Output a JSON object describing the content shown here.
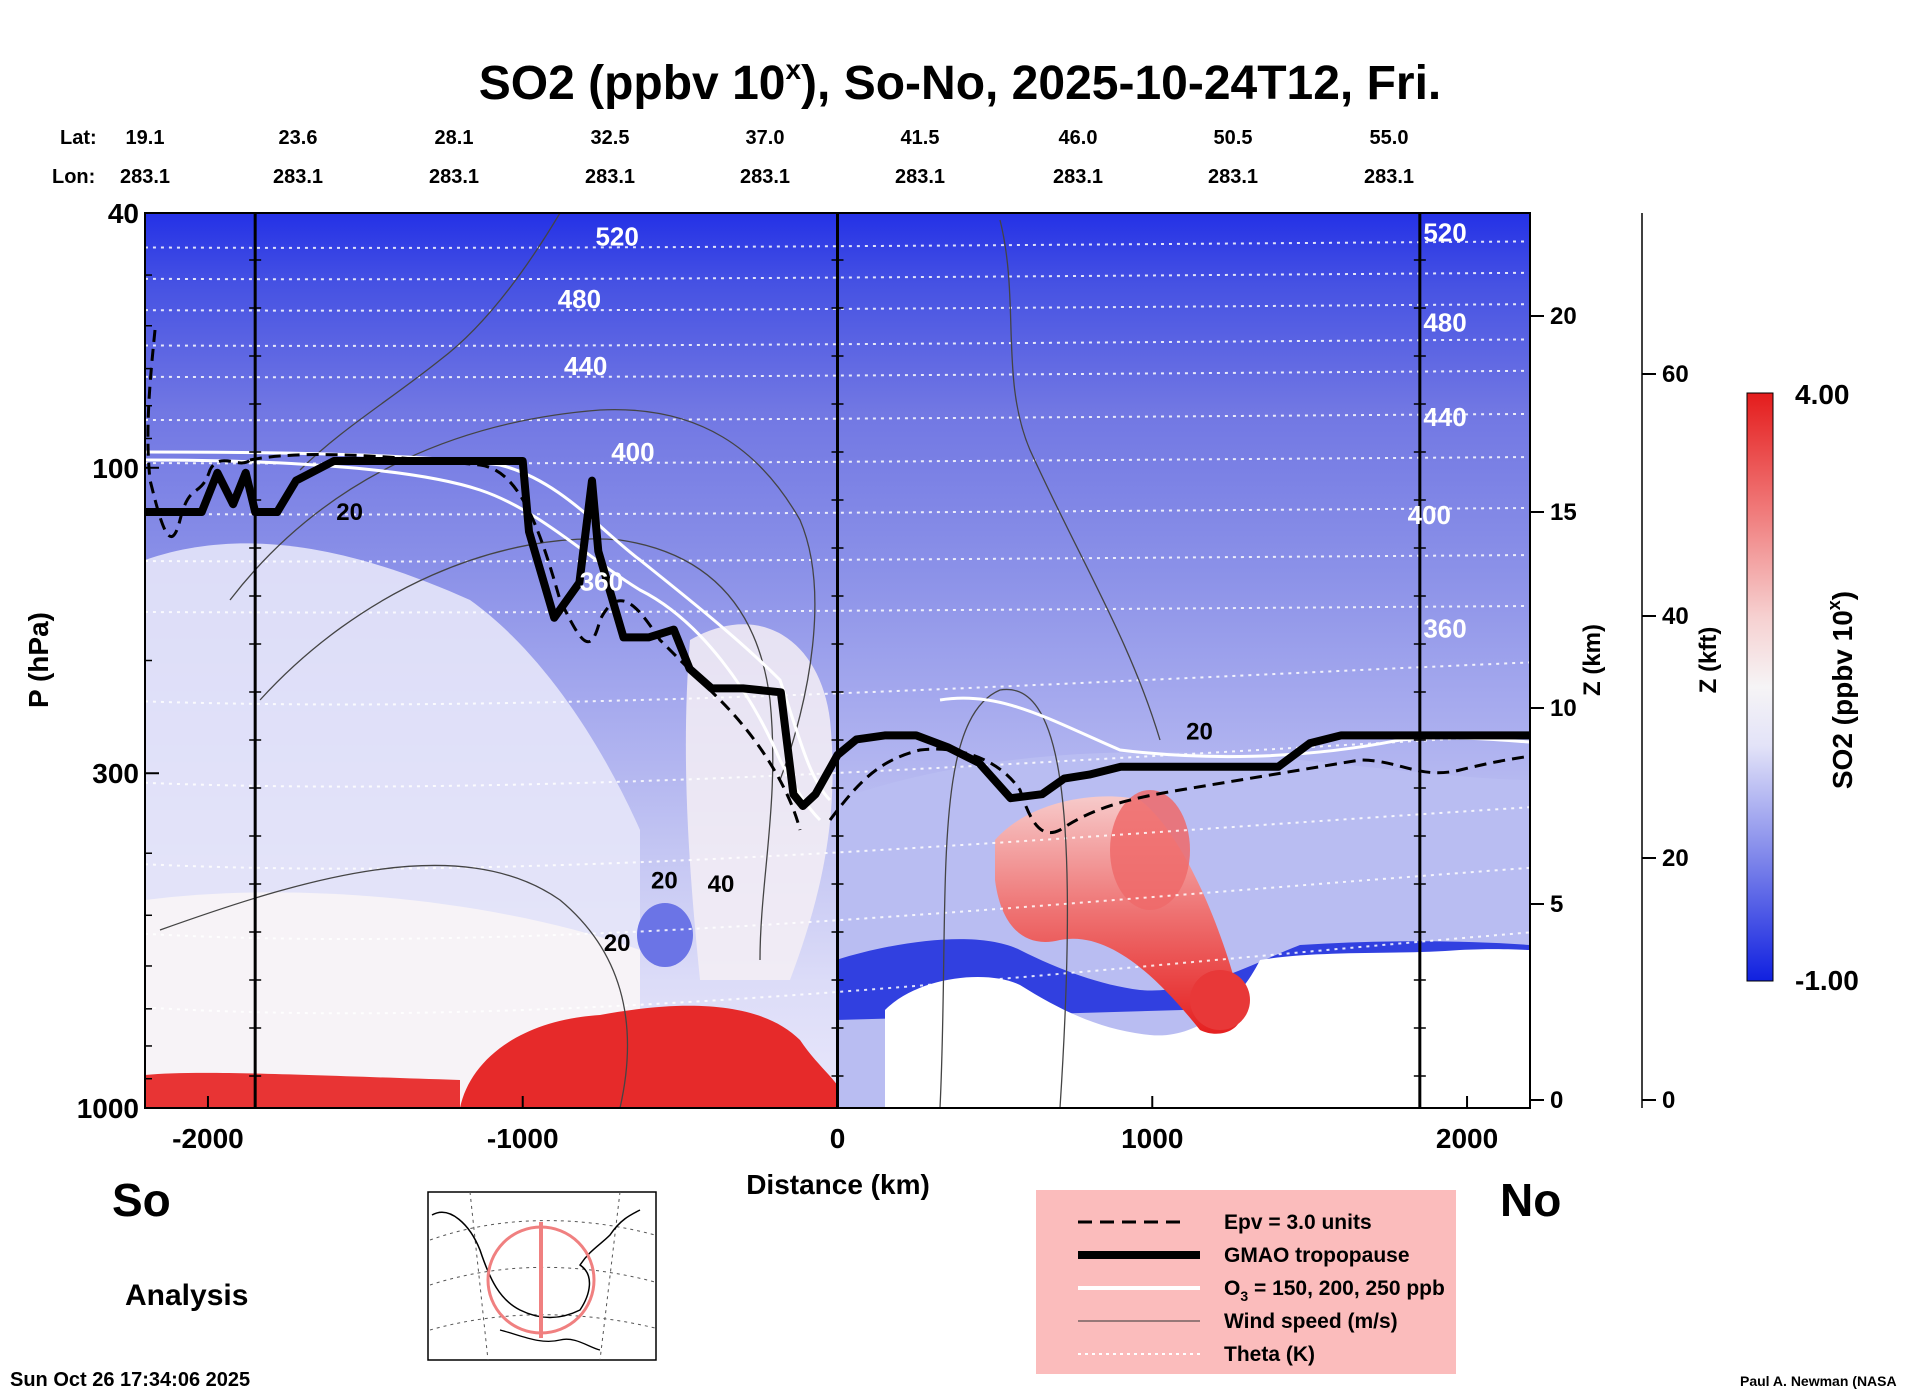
{
  "chart_data": {
    "type": "heatmap",
    "title": "SO2 (ppbv 10^x), So-No, 2025-10-24T12, Fri.",
    "title_parts": {
      "main": "SO2 (ppbv 10",
      "sup": "x",
      "rest": "), So-No, 2025-10-24T12, Fri."
    },
    "xlabel": "Distance (km)",
    "ylabel": "P (hPa)",
    "x_range": [
      -2200,
      2200
    ],
    "x_ticks": [
      -2000,
      -1000,
      0,
      1000,
      2000
    ],
    "x_ticklabels": [
      "-2000",
      "-1000",
      "0",
      "1000",
      "2000"
    ],
    "y_range_hPa": [
      1000,
      40
    ],
    "y_ticks_hPa": [
      40,
      100,
      300,
      1000
    ],
    "y_ticklabels": [
      "40",
      "100",
      "300",
      "1000"
    ],
    "z_km": {
      "label": "Z (km)",
      "ticks": [
        0,
        5,
        10,
        15,
        20
      ],
      "ticklabels": [
        "0",
        "5",
        "10",
        "15",
        "20"
      ]
    },
    "z_kft": {
      "label": "Z (kft)",
      "ticks": [
        0,
        20,
        40,
        60
      ],
      "ticklabels": [
        "0",
        "20",
        "40",
        "60"
      ]
    },
    "lat_label": "Lat:",
    "lon_label": "Lon:",
    "latitudes": [
      "19.1",
      "23.6",
      "28.1",
      "32.5",
      "37.0",
      "41.5",
      "46.0",
      "50.5",
      "55.0"
    ],
    "longitudes": [
      "283.1",
      "283.1",
      "283.1",
      "283.1",
      "283.1",
      "283.1",
      "283.1",
      "283.1",
      "283.1"
    ],
    "section_lines_km": [
      -1850,
      0,
      1850
    ],
    "theta_labels": [
      {
        "x": -700,
        "z": 21.8,
        "text": "520"
      },
      {
        "x": -820,
        "z": 20.2,
        "text": "480"
      },
      {
        "x": -800,
        "z": 18.5,
        "text": "440"
      },
      {
        "x": -650,
        "z": 16.3,
        "text": "400"
      },
      {
        "x": -750,
        "z": 13.0,
        "text": "360"
      },
      {
        "x": 1930,
        "z": 21.9,
        "text": "520"
      },
      {
        "x": 1930,
        "z": 19.6,
        "text": "480"
      },
      {
        "x": 1930,
        "z": 17.2,
        "text": "440"
      },
      {
        "x": 1880,
        "z": 14.7,
        "text": "400"
      },
      {
        "x": 1930,
        "z": 11.8,
        "text": "360"
      }
    ],
    "wind_labels": [
      {
        "x": -1550,
        "z": 14.8,
        "text": "20"
      },
      {
        "x": 1150,
        "z": 9.2,
        "text": "20"
      },
      {
        "x": -370,
        "z": 5.3,
        "text": "40"
      },
      {
        "x": -700,
        "z": 3.8,
        "text": "20"
      },
      {
        "x": -550,
        "z": 5.4,
        "text": "20"
      }
    ],
    "tropopause_gmao": {
      "x": [
        -2200,
        -2020,
        -1970,
        -1920,
        -1880,
        -1850,
        -1780,
        -1720,
        -1600,
        -1000,
        -980,
        -900,
        -820,
        -780,
        -760,
        -680,
        -600,
        -520,
        -470,
        -400,
        -300,
        -180,
        -140,
        -110,
        -70,
        0,
        60,
        150,
        250,
        350,
        450,
        550,
        650,
        720,
        800,
        900,
        1000,
        1100,
        1200,
        1300,
        1400,
        1500,
        1600,
        1700,
        1850,
        2200
      ],
      "z_km": [
        15.0,
        15.0,
        16.0,
        15.2,
        16.0,
        15.0,
        15.0,
        15.8,
        16.3,
        16.3,
        14.5,
        12.3,
        13.2,
        15.8,
        14.0,
        11.8,
        11.8,
        12.0,
        11.0,
        10.5,
        10.5,
        10.4,
        7.8,
        7.5,
        7.8,
        8.8,
        9.2,
        9.3,
        9.3,
        9.0,
        8.6,
        7.7,
        7.8,
        8.2,
        8.3,
        8.5,
        8.5,
        8.5,
        8.5,
        8.5,
        8.5,
        9.1,
        9.3,
        9.3,
        9.3,
        9.3
      ]
    },
    "so2_colorbar": {
      "label": "SO2 (ppbv 10^x)",
      "label_main": "SO2 (ppbv 10",
      "label_sup": "x",
      "label_rest": ")",
      "min": -1.0,
      "max": 4.0,
      "min_label": "-1.00",
      "max_label": "4.00",
      "low_color": "#1020e0",
      "mid_color": "#f6f4f6",
      "high_color": "#e41c1c"
    }
  },
  "side_labels": {
    "south": "So",
    "north": "No"
  },
  "analysis_label": "Analysis",
  "timestamp": "Sun Oct 26 17:34:06 2025",
  "credit": "Paul A. Newman (NASA",
  "legend": {
    "background": "#fbbcbc",
    "items": [
      {
        "style": "dashed",
        "label": "Epv = 3.0 units"
      },
      {
        "style": "thick",
        "label": "GMAO tropopause"
      },
      {
        "style": "white",
        "label_main": "O",
        "label_sub": "3",
        "label_rest": " = 150, 200, 250 ppb"
      },
      {
        "style": "thin",
        "label": "Wind speed (m/s)"
      },
      {
        "style": "dotted",
        "label": "Theta (K)"
      }
    ]
  }
}
